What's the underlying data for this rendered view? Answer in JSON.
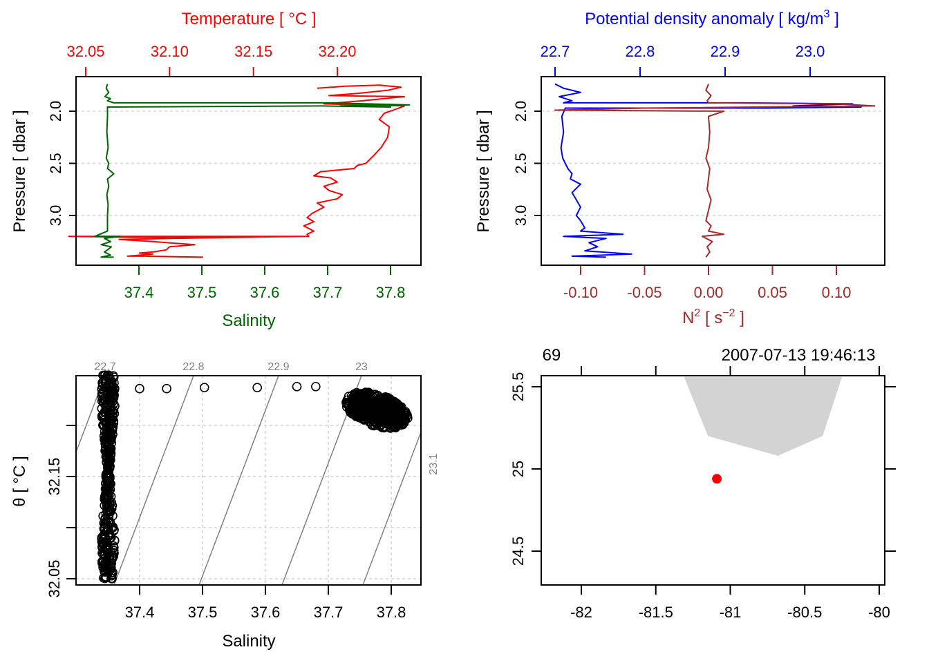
{
  "colors": {
    "temperature": "#ff0000",
    "salinity": "#006400",
    "density": "#0000ff",
    "n2": "#a52a2a",
    "axis": "#000000",
    "grid": "#d3d3d3",
    "isopycnal": "#808080",
    "coastline_fill": "#d3d3d3",
    "station": "#ff0000"
  },
  "chart_data": [
    {
      "id": "profile-ts",
      "type": "line",
      "title": "",
      "top_axis": {
        "label": "Temperature [ °C ]",
        "ticks": [
          "32.05",
          "32.10",
          "32.15",
          "32.20"
        ],
        "tick_values": [
          32.05,
          32.1,
          32.15,
          32.2
        ]
      },
      "bottom_axis": {
        "label": "Salinity",
        "ticks": [
          "37.4",
          "37.5",
          "37.6",
          "37.7",
          "37.8"
        ],
        "tick_values": [
          37.4,
          37.5,
          37.6,
          37.7,
          37.8
        ]
      },
      "ylabel": "Pressure [ dbar ]",
      "yticks": [
        "2.0",
        "2.5",
        "3.0"
      ],
      "ytick_values": [
        2.0,
        2.5,
        3.0
      ],
      "ylim": [
        3.42,
        1.68
      ],
      "grid": "horizontal dashed",
      "series": [
        {
          "name": "Temperature",
          "axis": "top",
          "x": [
            32.188,
            32.205,
            32.225,
            32.238,
            32.23,
            32.212,
            32.195,
            32.24,
            32.215,
            32.192,
            32.24,
            32.235,
            32.228,
            32.225,
            32.231,
            32.23,
            32.226,
            32.222,
            32.217,
            32.212,
            32.21,
            32.19,
            32.186,
            32.196,
            32.2,
            32.192,
            32.195,
            32.203,
            32.2,
            32.188,
            32.192,
            32.185,
            32.182,
            32.186,
            32.18,
            32.186,
            32.182,
            32.183,
            32.04,
            32.08,
            32.18,
            32.1,
            32.07,
            32.09,
            32.115,
            32.1,
            32.098,
            32.09,
            32.082,
            32.09,
            32.075,
            32.085,
            32.12
          ],
          "y": [
            1.78,
            1.76,
            1.75,
            1.77,
            1.8,
            1.83,
            1.85,
            1.86,
            1.9,
            1.93,
            1.95,
            1.98,
            2.02,
            2.08,
            2.15,
            2.25,
            2.35,
            2.42,
            2.5,
            2.52,
            2.55,
            2.58,
            2.62,
            2.64,
            2.68,
            2.72,
            2.76,
            2.8,
            2.84,
            2.88,
            2.92,
            2.98,
            3.02,
            3.06,
            3.1,
            3.15,
            3.18,
            3.2,
            3.2,
            3.21,
            3.2,
            3.22,
            3.23,
            3.25,
            3.28,
            3.3,
            3.33,
            3.35,
            3.36,
            3.37,
            3.39,
            3.39,
            3.4
          ]
        },
        {
          "name": "Salinity",
          "axis": "bottom",
          "x": [
            37.35,
            37.348,
            37.352,
            37.346,
            37.355,
            37.35,
            37.36,
            37.38,
            37.7,
            37.83,
            37.72,
            37.8,
            37.69,
            37.35,
            37.35,
            37.349,
            37.351,
            37.348,
            37.352,
            37.35,
            37.36,
            37.35,
            37.352,
            37.349,
            37.351,
            37.35,
            37.35,
            37.33,
            37.37,
            37.345,
            37.355,
            37.34,
            37.356,
            37.35,
            37.345,
            37.355,
            37.34,
            37.36
          ],
          "y": [
            1.74,
            1.78,
            1.82,
            1.86,
            1.88,
            1.9,
            1.92,
            1.92,
            1.92,
            1.94,
            1.95,
            1.96,
            1.95,
            1.96,
            2.05,
            2.2,
            2.35,
            2.45,
            2.5,
            2.55,
            2.6,
            2.65,
            2.72,
            2.8,
            2.9,
            3.0,
            3.15,
            3.2,
            3.2,
            3.22,
            3.25,
            3.28,
            3.3,
            3.33,
            3.35,
            3.38,
            3.4,
            3.4
          ]
        }
      ]
    },
    {
      "id": "profile-density-n2",
      "type": "line",
      "top_axis": {
        "label_main": "Potential density anomaly [ kg/m",
        "label_sup": "3",
        "label_end": " ]",
        "ticks": [
          "22.7",
          "22.8",
          "22.9",
          "23.0"
        ],
        "tick_values": [
          22.7,
          22.8,
          22.9,
          23.0
        ]
      },
      "bottom_axis": {
        "label_main": "N",
        "label_sup": "2",
        "label_mid": " [ s",
        "label_sup2": "−2",
        "label_end": " ]",
        "ticks": [
          "-0.10",
          "-0.05",
          "0.00",
          "0.05",
          "0.10"
        ],
        "tick_values": [
          -0.1,
          -0.05,
          0.0,
          0.05,
          0.1
        ]
      },
      "ylabel": "Pressure [ dbar ]",
      "yticks": [
        "2.0",
        "2.5",
        "3.0"
      ],
      "ytick_values": [
        2.0,
        2.5,
        3.0
      ],
      "ylim": [
        3.42,
        1.68
      ],
      "grid": "horizontal dashed",
      "series": [
        {
          "name": "Potential density anomaly",
          "axis": "top",
          "x": [
            22.7,
            22.71,
            22.73,
            22.705,
            22.72,
            22.71,
            22.92,
            23.05,
            22.98,
            23.06,
            22.95,
            22.712,
            22.708,
            22.71,
            22.707,
            22.709,
            22.712,
            22.715,
            22.72,
            22.718,
            22.73,
            22.72,
            22.725,
            22.73,
            22.725,
            22.73,
            22.735,
            22.73,
            22.78,
            22.71,
            22.76,
            22.74,
            22.75,
            22.735,
            22.79,
            22.72,
            22.76
          ],
          "y": [
            1.74,
            1.78,
            1.82,
            1.86,
            1.9,
            1.92,
            1.92,
            1.93,
            1.95,
            1.96,
            1.97,
            1.97,
            2.05,
            2.2,
            2.35,
            2.45,
            2.5,
            2.55,
            2.6,
            2.65,
            2.7,
            2.78,
            2.85,
            2.92,
            3.0,
            3.05,
            3.12,
            3.15,
            3.18,
            3.2,
            3.22,
            3.26,
            3.3,
            3.34,
            3.37,
            3.39,
            3.4
          ]
        },
        {
          "name": "N2",
          "axis": "bottom",
          "x": [
            0.0,
            -0.002,
            0.002,
            -0.001,
            0.0,
            0.1,
            0.13,
            -0.05,
            -0.12,
            0.012,
            0.0,
            0.001,
            0.0,
            -0.002,
            0.001,
            0.0,
            -0.001,
            0.002,
            0.0,
            -0.002,
            0.002,
            0.0,
            0.012,
            -0.005,
            0.003,
            -0.001,
            0.001,
            -0.002
          ],
          "y": [
            1.74,
            1.8,
            1.85,
            1.9,
            1.92,
            1.93,
            1.95,
            1.97,
            1.99,
            2.0,
            2.05,
            2.2,
            2.35,
            2.45,
            2.55,
            2.65,
            2.75,
            2.85,
            2.95,
            3.05,
            3.1,
            3.15,
            3.18,
            3.2,
            3.25,
            3.3,
            3.35,
            3.4
          ]
        }
      ]
    },
    {
      "id": "ts-diagram",
      "type": "scatter",
      "xlabel": "Salinity",
      "ylabel": "θ [ °C ]",
      "xticks": [
        "37.4",
        "37.5",
        "37.6",
        "37.7",
        "37.8"
      ],
      "xtick_values": [
        37.4,
        37.5,
        37.6,
        37.7,
        37.8
      ],
      "yticks": [
        "32.05",
        "32.15"
      ],
      "ytick_values": [
        32.05,
        32.15
      ],
      "ytick_positions_unlabeled": [
        32.1,
        32.2
      ],
      "xlim": [
        37.3,
        37.85
      ],
      "ylim": [
        32.045,
        32.255
      ],
      "grid": "dashed both",
      "isopycnals": [
        {
          "label": "22.7",
          "value": 22.7
        },
        {
          "label": "22.8",
          "value": 22.8
        },
        {
          "label": "22.9",
          "value": 22.9
        },
        {
          "label": "23",
          "value": 23.0
        },
        {
          "label": "23.1",
          "value": 23.1
        }
      ],
      "clusters": [
        {
          "name": "fresh-column",
          "s_center": 37.35,
          "s_spread": 0.012,
          "t_min": 32.05,
          "t_max": 32.25
        },
        {
          "name": "salty-blob",
          "s_min": 37.68,
          "s_max": 37.83,
          "t_min": 32.19,
          "t_max": 32.245
        }
      ],
      "transition_points": [
        {
          "s": 37.36,
          "t": 32.235
        },
        {
          "s": 37.4,
          "t": 32.236
        },
        {
          "s": 37.443,
          "t": 32.236
        },
        {
          "s": 37.503,
          "t": 32.237
        },
        {
          "s": 37.587,
          "t": 32.237
        },
        {
          "s": 37.65,
          "t": 32.238
        },
        {
          "s": 37.68,
          "t": 32.238
        }
      ]
    },
    {
      "id": "station-map",
      "type": "scatter",
      "top_axis_labels": [
        "69",
        "2007-07-13 19:46:13"
      ],
      "xticks": [
        "-82",
        "-81.5",
        "-81",
        "-80.5",
        "-80"
      ],
      "xtick_values": [
        -82,
        -81.5,
        -81,
        -80.5,
        -80
      ],
      "yticks": [
        "24.5",
        "25",
        "25.5"
      ],
      "ytick_values": [
        24.5,
        25,
        25.5
      ],
      "xlim": [
        -82.24,
        -79.96
      ],
      "ylim": [
        24.2,
        25.56
      ],
      "coastline_polygon": [
        {
          "lon": -81.31,
          "lat": 25.56
        },
        {
          "lon": -81.15,
          "lat": 25.2
        },
        {
          "lon": -80.68,
          "lat": 25.08
        },
        {
          "lon": -80.38,
          "lat": 25.2
        },
        {
          "lon": -80.25,
          "lat": 25.56
        }
      ],
      "station": {
        "lon": -81.09,
        "lat": 24.94
      }
    }
  ]
}
